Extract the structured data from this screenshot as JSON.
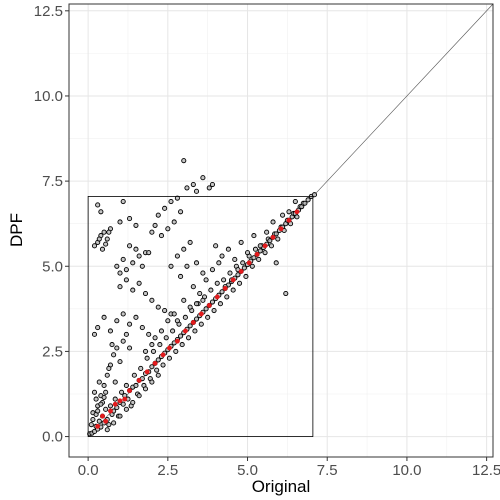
{
  "chart_data": {
    "type": "scatter",
    "xlabel": "Original",
    "ylabel": "DPF",
    "xlim": [
      -0.6,
      12.7
    ],
    "ylim": [
      -0.6,
      12.7
    ],
    "x_ticks": [
      {
        "value": 0,
        "label": "0.0"
      },
      {
        "value": 2.5,
        "label": "2.5"
      },
      {
        "value": 5,
        "label": "5.0"
      },
      {
        "value": 7.5,
        "label": "7.5"
      },
      {
        "value": 10,
        "label": "10.0"
      },
      {
        "value": 12.5,
        "label": "12.5"
      }
    ],
    "y_ticks": [
      {
        "value": 0,
        "label": "0.0"
      },
      {
        "value": 2.5,
        "label": "2.5"
      },
      {
        "value": 5,
        "label": "5.0"
      },
      {
        "value": 7.5,
        "label": "7.5"
      },
      {
        "value": 10,
        "label": "10.0"
      },
      {
        "value": 12.5,
        "label": "12.5"
      }
    ],
    "grid": true,
    "reference_line": {
      "description": "identity y = x",
      "from": [
        0,
        0
      ],
      "to": [
        12.7,
        12.7
      ]
    },
    "bounding_box": {
      "x": [
        0,
        7.05
      ],
      "y": [
        0,
        7.05
      ]
    },
    "series": [
      {
        "role": "points",
        "color": "#000000",
        "fill": "#bbbbbb",
        "values": [
          [
            0.05,
            0.08
          ],
          [
            0.12,
            0.1
          ],
          [
            0.2,
            0.15
          ],
          [
            0.25,
            0.3
          ],
          [
            0.3,
            0.22
          ],
          [
            0.35,
            0.45
          ],
          [
            0.4,
            0.28
          ],
          [
            0.45,
            0.6
          ],
          [
            0.5,
            0.4
          ],
          [
            0.55,
            0.8
          ],
          [
            0.6,
            0.5
          ],
          [
            0.65,
            0.35
          ],
          [
            0.7,
            0.9
          ],
          [
            0.75,
            0.65
          ],
          [
            0.8,
            0.75
          ],
          [
            0.85,
            1.1
          ],
          [
            0.9,
            0.85
          ],
          [
            0.95,
            0.6
          ],
          [
            1.0,
            1.0
          ],
          [
            1.05,
            1.3
          ],
          [
            1.1,
            0.95
          ],
          [
            1.15,
            1.2
          ],
          [
            1.2,
            1.5
          ],
          [
            1.25,
            1.1
          ],
          [
            1.3,
            1.35
          ],
          [
            1.35,
            0.9
          ],
          [
            1.4,
            1.45
          ],
          [
            1.45,
            1.8
          ],
          [
            1.5,
            1.5
          ],
          [
            1.55,
            1.25
          ],
          [
            1.6,
            1.65
          ],
          [
            1.65,
            2.0
          ],
          [
            1.7,
            1.7
          ],
          [
            1.75,
            1.5
          ],
          [
            1.8,
            1.85
          ],
          [
            1.85,
            2.3
          ],
          [
            1.9,
            1.9
          ],
          [
            1.95,
            1.7
          ],
          [
            2.0,
            2.05
          ],
          [
            2.05,
            2.5
          ],
          [
            2.1,
            2.15
          ],
          [
            2.15,
            1.95
          ],
          [
            2.2,
            2.25
          ],
          [
            2.25,
            2.7
          ],
          [
            2.3,
            2.35
          ],
          [
            2.35,
            2.1
          ],
          [
            2.4,
            2.45
          ],
          [
            2.45,
            2.9
          ],
          [
            2.5,
            2.55
          ],
          [
            2.55,
            2.3
          ],
          [
            2.6,
            2.65
          ],
          [
            2.65,
            3.1
          ],
          [
            2.7,
            2.75
          ],
          [
            2.75,
            2.5
          ],
          [
            2.8,
            2.85
          ],
          [
            2.85,
            3.3
          ],
          [
            2.9,
            2.95
          ],
          [
            2.95,
            2.7
          ],
          [
            3.0,
            3.05
          ],
          [
            3.05,
            3.5
          ],
          [
            3.1,
            3.15
          ],
          [
            3.15,
            2.9
          ],
          [
            3.2,
            3.25
          ],
          [
            3.25,
            3.7
          ],
          [
            3.3,
            3.35
          ],
          [
            3.35,
            3.1
          ],
          [
            3.4,
            3.45
          ],
          [
            3.45,
            3.9
          ],
          [
            3.5,
            3.55
          ],
          [
            3.55,
            3.3
          ],
          [
            3.6,
            3.65
          ],
          [
            3.65,
            4.1
          ],
          [
            3.7,
            3.75
          ],
          [
            3.75,
            3.5
          ],
          [
            3.8,
            3.85
          ],
          [
            3.85,
            4.3
          ],
          [
            3.9,
            3.95
          ],
          [
            3.95,
            3.7
          ],
          [
            4.0,
            4.05
          ],
          [
            4.05,
            4.5
          ],
          [
            4.1,
            4.15
          ],
          [
            4.15,
            3.9
          ],
          [
            4.2,
            4.25
          ],
          [
            4.25,
            4.6
          ],
          [
            4.3,
            4.35
          ],
          [
            4.35,
            4.1
          ],
          [
            4.4,
            4.45
          ],
          [
            4.45,
            4.8
          ],
          [
            4.5,
            4.55
          ],
          [
            4.55,
            4.3
          ],
          [
            4.6,
            4.65
          ],
          [
            4.65,
            5.0
          ],
          [
            4.7,
            4.75
          ],
          [
            4.75,
            4.5
          ],
          [
            4.8,
            4.85
          ],
          [
            4.85,
            5.1
          ],
          [
            4.9,
            4.95
          ],
          [
            4.95,
            4.7
          ],
          [
            5.0,
            5.05
          ],
          [
            5.05,
            5.3
          ],
          [
            5.1,
            5.15
          ],
          [
            5.15,
            5.0
          ],
          [
            5.2,
            5.25
          ],
          [
            5.25,
            5.5
          ],
          [
            5.3,
            5.35
          ],
          [
            5.35,
            5.2
          ],
          [
            5.4,
            5.45
          ],
          [
            5.45,
            5.6
          ],
          [
            5.5,
            5.55
          ],
          [
            5.55,
            5.4
          ],
          [
            5.6,
            5.65
          ],
          [
            5.65,
            5.8
          ],
          [
            5.7,
            5.75
          ],
          [
            5.75,
            5.6
          ],
          [
            5.8,
            5.85
          ],
          [
            5.85,
            5.95
          ],
          [
            5.9,
            5.95
          ],
          [
            5.95,
            5.8
          ],
          [
            6.0,
            6.05
          ],
          [
            6.05,
            6.15
          ],
          [
            6.1,
            6.15
          ],
          [
            6.15,
            6.05
          ],
          [
            6.2,
            6.25
          ],
          [
            6.25,
            6.35
          ],
          [
            6.3,
            6.35
          ],
          [
            6.35,
            6.25
          ],
          [
            6.4,
            6.45
          ],
          [
            6.45,
            6.55
          ],
          [
            6.5,
            6.55
          ],
          [
            6.55,
            6.45
          ],
          [
            6.6,
            6.65
          ],
          [
            6.65,
            6.75
          ],
          [
            6.7,
            6.75
          ],
          [
            6.75,
            6.85
          ],
          [
            6.8,
            6.85
          ],
          [
            6.9,
            6.95
          ],
          [
            7.0,
            7.05
          ],
          [
            7.1,
            7.1
          ],
          [
            0.3,
            0.9
          ],
          [
            0.4,
            1.2
          ],
          [
            0.5,
            1.5
          ],
          [
            0.6,
            1.8
          ],
          [
            0.7,
            2.1
          ],
          [
            0.8,
            2.4
          ],
          [
            0.9,
            2.6
          ],
          [
            0.45,
            1.0
          ],
          [
            0.55,
            1.3
          ],
          [
            0.65,
            2.0
          ],
          [
            0.35,
            1.6
          ],
          [
            0.25,
            1.1
          ],
          [
            0.15,
            0.7
          ],
          [
            0.2,
            1.3
          ],
          [
            0.75,
            2.7
          ],
          [
            0.85,
            1.6
          ],
          [
            1.0,
            2.2
          ],
          [
            1.1,
            2.8
          ],
          [
            1.2,
            3.0
          ],
          [
            1.3,
            2.6
          ],
          [
            0.2,
            3.0
          ],
          [
            0.3,
            3.2
          ],
          [
            0.5,
            3.5
          ],
          [
            0.7,
            3.1
          ],
          [
            0.9,
            3.4
          ],
          [
            1.1,
            3.6
          ],
          [
            1.3,
            3.3
          ],
          [
            1.5,
            3.5
          ],
          [
            1.7,
            3.2
          ],
          [
            1.9,
            3.0
          ],
          [
            1.0,
            4.4
          ],
          [
            1.2,
            4.6
          ],
          [
            1.4,
            4.3
          ],
          [
            1.6,
            4.5
          ],
          [
            1.8,
            4.2
          ],
          [
            2.0,
            4.0
          ],
          [
            2.2,
            3.8
          ],
          [
            2.4,
            3.7
          ],
          [
            2.6,
            3.6
          ],
          [
            2.8,
            3.4
          ],
          [
            2.9,
            4.7
          ],
          [
            3.1,
            5.0
          ],
          [
            3.3,
            4.4
          ],
          [
            3.5,
            4.2
          ],
          [
            3.7,
            4.6
          ],
          [
            3.9,
            4.9
          ],
          [
            4.1,
            5.1
          ],
          [
            4.3,
            4.4
          ],
          [
            4.5,
            4.6
          ],
          [
            4.7,
            4.9
          ],
          [
            3.0,
            4.0
          ],
          [
            3.2,
            3.8
          ],
          [
            3.4,
            3.9
          ],
          [
            3.6,
            4.0
          ],
          [
            2.5,
            3.4
          ],
          [
            2.7,
            3.6
          ],
          [
            2.3,
            3.1
          ],
          [
            2.1,
            2.9
          ],
          [
            2.0,
            2.7
          ],
          [
            1.8,
            2.5
          ],
          [
            1.2,
            4.9
          ],
          [
            1.4,
            5.1
          ],
          [
            1.6,
            5.3
          ],
          [
            1.8,
            5.4
          ],
          [
            1.5,
            5.5
          ],
          [
            1.3,
            5.6
          ],
          [
            1.7,
            5.0
          ],
          [
            1.1,
            5.2
          ],
          [
            0.9,
            5.0
          ],
          [
            1.0,
            4.8
          ],
          [
            0.2,
            5.6
          ],
          [
            0.3,
            5.7
          ],
          [
            0.4,
            5.9
          ],
          [
            0.5,
            6.0
          ],
          [
            0.6,
            5.8
          ],
          [
            0.7,
            6.1
          ],
          [
            0.45,
            5.5
          ],
          [
            0.35,
            5.8
          ],
          [
            0.55,
            5.65
          ],
          [
            0.65,
            6.0
          ],
          [
            0.3,
            6.8
          ],
          [
            0.4,
            6.6
          ],
          [
            1.0,
            6.3
          ],
          [
            1.1,
            6.9
          ],
          [
            1.3,
            6.4
          ],
          [
            1.5,
            6.2
          ],
          [
            2.0,
            6.0
          ],
          [
            2.2,
            6.5
          ],
          [
            2.4,
            6.7
          ],
          [
            2.6,
            6.9
          ],
          [
            2.8,
            7.0
          ],
          [
            2.9,
            6.6
          ],
          [
            3.1,
            7.3
          ],
          [
            3.3,
            7.4
          ],
          [
            3.4,
            7.2
          ],
          [
            3.6,
            7.6
          ],
          [
            3.8,
            7.3
          ],
          [
            3.9,
            7.4
          ],
          [
            3.0,
            8.1
          ],
          [
            2.7,
            6.3
          ],
          [
            2.5,
            6.1
          ],
          [
            2.3,
            5.9
          ],
          [
            2.1,
            6.2
          ],
          [
            1.9,
            5.4
          ],
          [
            2.6,
            5.0
          ],
          [
            2.8,
            5.3
          ],
          [
            3.0,
            5.5
          ],
          [
            3.2,
            5.7
          ],
          [
            3.4,
            5.1
          ],
          [
            3.6,
            4.8
          ],
          [
            4.0,
            5.6
          ],
          [
            4.2,
            5.3
          ],
          [
            4.4,
            5.5
          ],
          [
            4.6,
            5.2
          ],
          [
            4.8,
            5.7
          ],
          [
            5.0,
            5.4
          ],
          [
            5.2,
            5.9
          ],
          [
            5.4,
            5.6
          ],
          [
            5.6,
            6.0
          ],
          [
            5.8,
            6.3
          ],
          [
            6.2,
            4.2
          ],
          [
            5.9,
            5.1
          ],
          [
            6.3,
            6.6
          ],
          [
            6.5,
            6.9
          ],
          [
            6.1,
            6.5
          ],
          [
            0.6,
            0.2
          ],
          [
            0.8,
            0.4
          ],
          [
            1.0,
            0.6
          ],
          [
            1.2,
            0.8
          ],
          [
            1.4,
            1.0
          ],
          [
            1.6,
            1.2
          ],
          [
            1.8,
            1.4
          ],
          [
            2.0,
            1.6
          ],
          [
            2.2,
            1.8
          ],
          [
            0.1,
            0.35
          ],
          [
            0.15,
            0.5
          ],
          [
            0.25,
            0.65
          ],
          [
            0.3,
            0.75
          ],
          [
            0.4,
            0.95
          ],
          [
            0.5,
            1.15
          ]
        ]
      },
      {
        "role": "highlighted points",
        "color": "#e31a1c",
        "values": [
          [
            0.3,
            0.3
          ],
          [
            0.45,
            0.6
          ],
          [
            0.55,
            0.45
          ],
          [
            0.7,
            0.75
          ],
          [
            0.85,
            0.95
          ],
          [
            1.0,
            1.05
          ],
          [
            1.15,
            1.1
          ],
          [
            1.3,
            1.35
          ],
          [
            1.6,
            1.65
          ],
          [
            1.85,
            1.9
          ],
          [
            2.1,
            2.15
          ],
          [
            2.35,
            2.4
          ],
          [
            2.55,
            2.6
          ],
          [
            2.8,
            2.8
          ],
          [
            3.05,
            3.1
          ],
          [
            3.3,
            3.35
          ],
          [
            3.55,
            3.6
          ],
          [
            3.8,
            3.85
          ],
          [
            4.05,
            4.1
          ],
          [
            4.3,
            4.35
          ],
          [
            4.55,
            4.6
          ],
          [
            4.8,
            4.85
          ],
          [
            5.05,
            5.1
          ],
          [
            5.3,
            5.35
          ],
          [
            5.55,
            5.6
          ],
          [
            5.8,
            5.85
          ],
          [
            6.05,
            6.1
          ],
          [
            6.3,
            6.35
          ],
          [
            6.55,
            6.6
          ]
        ]
      }
    ]
  }
}
